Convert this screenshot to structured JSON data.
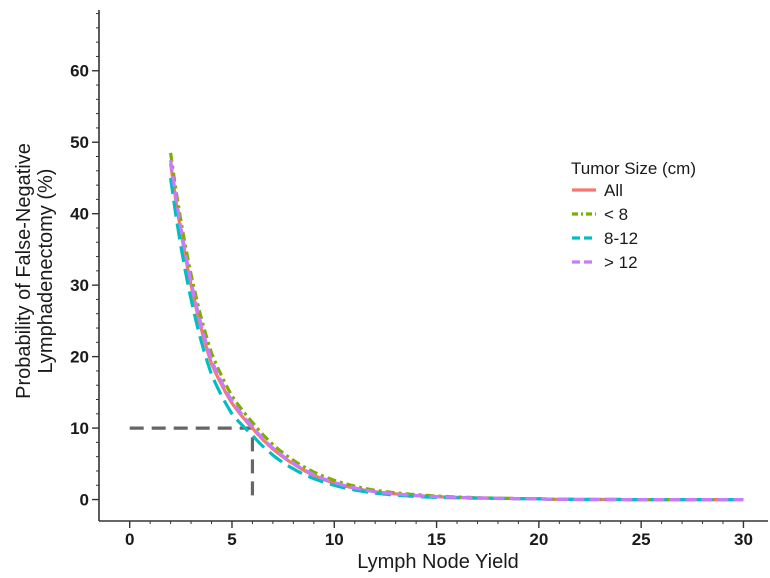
{
  "chart_data": {
    "type": "line",
    "xlabel": "Lymph Node Yield",
    "ylabel_lines": [
      "Probability of False-Negative",
      "Lymphadenectomy (%)"
    ],
    "xlim": [
      -1.5,
      31.2
    ],
    "ylim": [
      -3,
      68.5
    ],
    "x_ticks": [
      0,
      5,
      10,
      15,
      20,
      25,
      30
    ],
    "y_ticks": [
      0,
      10,
      20,
      30,
      40,
      50,
      60
    ],
    "grid": false,
    "legend": {
      "title": "Tumor Size (cm)",
      "placement": "top-right"
    },
    "series": [
      {
        "name": "All",
        "color": "#F8766D",
        "dash": "solid",
        "x": [
          2,
          3,
          4,
          5,
          6,
          8,
          10,
          12,
          15,
          20,
          25,
          30
        ],
        "y": [
          47.0,
          30.0,
          19.0,
          13.5,
          10.0,
          5.0,
          2.3,
          1.1,
          0.4,
          0.1,
          0.0,
          0.0
        ]
      },
      {
        "name": "< 8",
        "color": "#7CAE00",
        "dash": "dotdash",
        "x": [
          2,
          3,
          4,
          5,
          6,
          8,
          10,
          12,
          15,
          20,
          25,
          30
        ],
        "y": [
          48.5,
          31.5,
          20.5,
          14.5,
          10.8,
          5.5,
          2.7,
          1.3,
          0.5,
          0.1,
          0.0,
          0.0
        ]
      },
      {
        "name": "8-12",
        "color": "#00BFC4",
        "dash": "longdash",
        "x": [
          2,
          3,
          4,
          5,
          6,
          8,
          10,
          12,
          15,
          20,
          25,
          30
        ],
        "y": [
          45.0,
          28.0,
          17.5,
          12.0,
          9.0,
          4.3,
          2.0,
          0.9,
          0.3,
          0.1,
          0.0,
          0.0
        ]
      },
      {
        "name": "> 12",
        "color": "#C77CFF",
        "dash": "dash",
        "x": [
          2,
          3,
          4,
          5,
          6,
          8,
          10,
          12,
          15,
          20,
          25,
          30
        ],
        "y": [
          47.5,
          30.5,
          19.5,
          13.8,
          10.2,
          5.1,
          2.4,
          1.1,
          0.4,
          0.1,
          0.0,
          0.0
        ]
      }
    ],
    "reference_line": {
      "color": "#666666",
      "x": [
        0,
        6,
        6
      ],
      "y": [
        10,
        10,
        0
      ]
    }
  }
}
